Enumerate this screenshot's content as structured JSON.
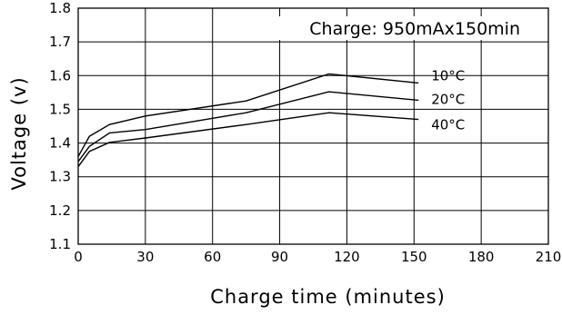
{
  "chart_data": {
    "type": "line",
    "title": "",
    "annotation": "Charge: 950mAx150min",
    "xlabel": "Charge time (minutes)",
    "ylabel": "Voltage (v)",
    "xlim": [
      0,
      210
    ],
    "ylim": [
      1.1,
      1.8
    ],
    "xticks": [
      0,
      30,
      60,
      90,
      120,
      150,
      180,
      210
    ],
    "yticks": [
      1.1,
      1.2,
      1.3,
      1.4,
      1.5,
      1.6,
      1.7,
      1.8
    ],
    "xtick_labels": [
      "0",
      "30",
      "60",
      "90",
      "120",
      "150",
      "180",
      "210"
    ],
    "ytick_labels": [
      "1.1",
      "1.2",
      "1.3",
      "1.4",
      "1.5",
      "1.6",
      "1.7",
      "1.8"
    ],
    "grid": true,
    "series": [
      {
        "name": "10°C",
        "x": [
          0,
          5,
          14,
          30,
          75,
          112,
          152
        ],
        "y": [
          1.36,
          1.42,
          1.455,
          1.48,
          1.525,
          1.605,
          1.578
        ]
      },
      {
        "name": "20°C",
        "x": [
          0,
          5,
          14,
          30,
          75,
          112,
          152
        ],
        "y": [
          1.345,
          1.39,
          1.43,
          1.44,
          1.49,
          1.552,
          1.527
        ]
      },
      {
        "name": "40°C",
        "x": [
          0,
          5,
          14,
          30,
          75,
          112,
          152
        ],
        "y": [
          1.33,
          1.375,
          1.402,
          1.415,
          1.455,
          1.49,
          1.47
        ]
      }
    ]
  }
}
